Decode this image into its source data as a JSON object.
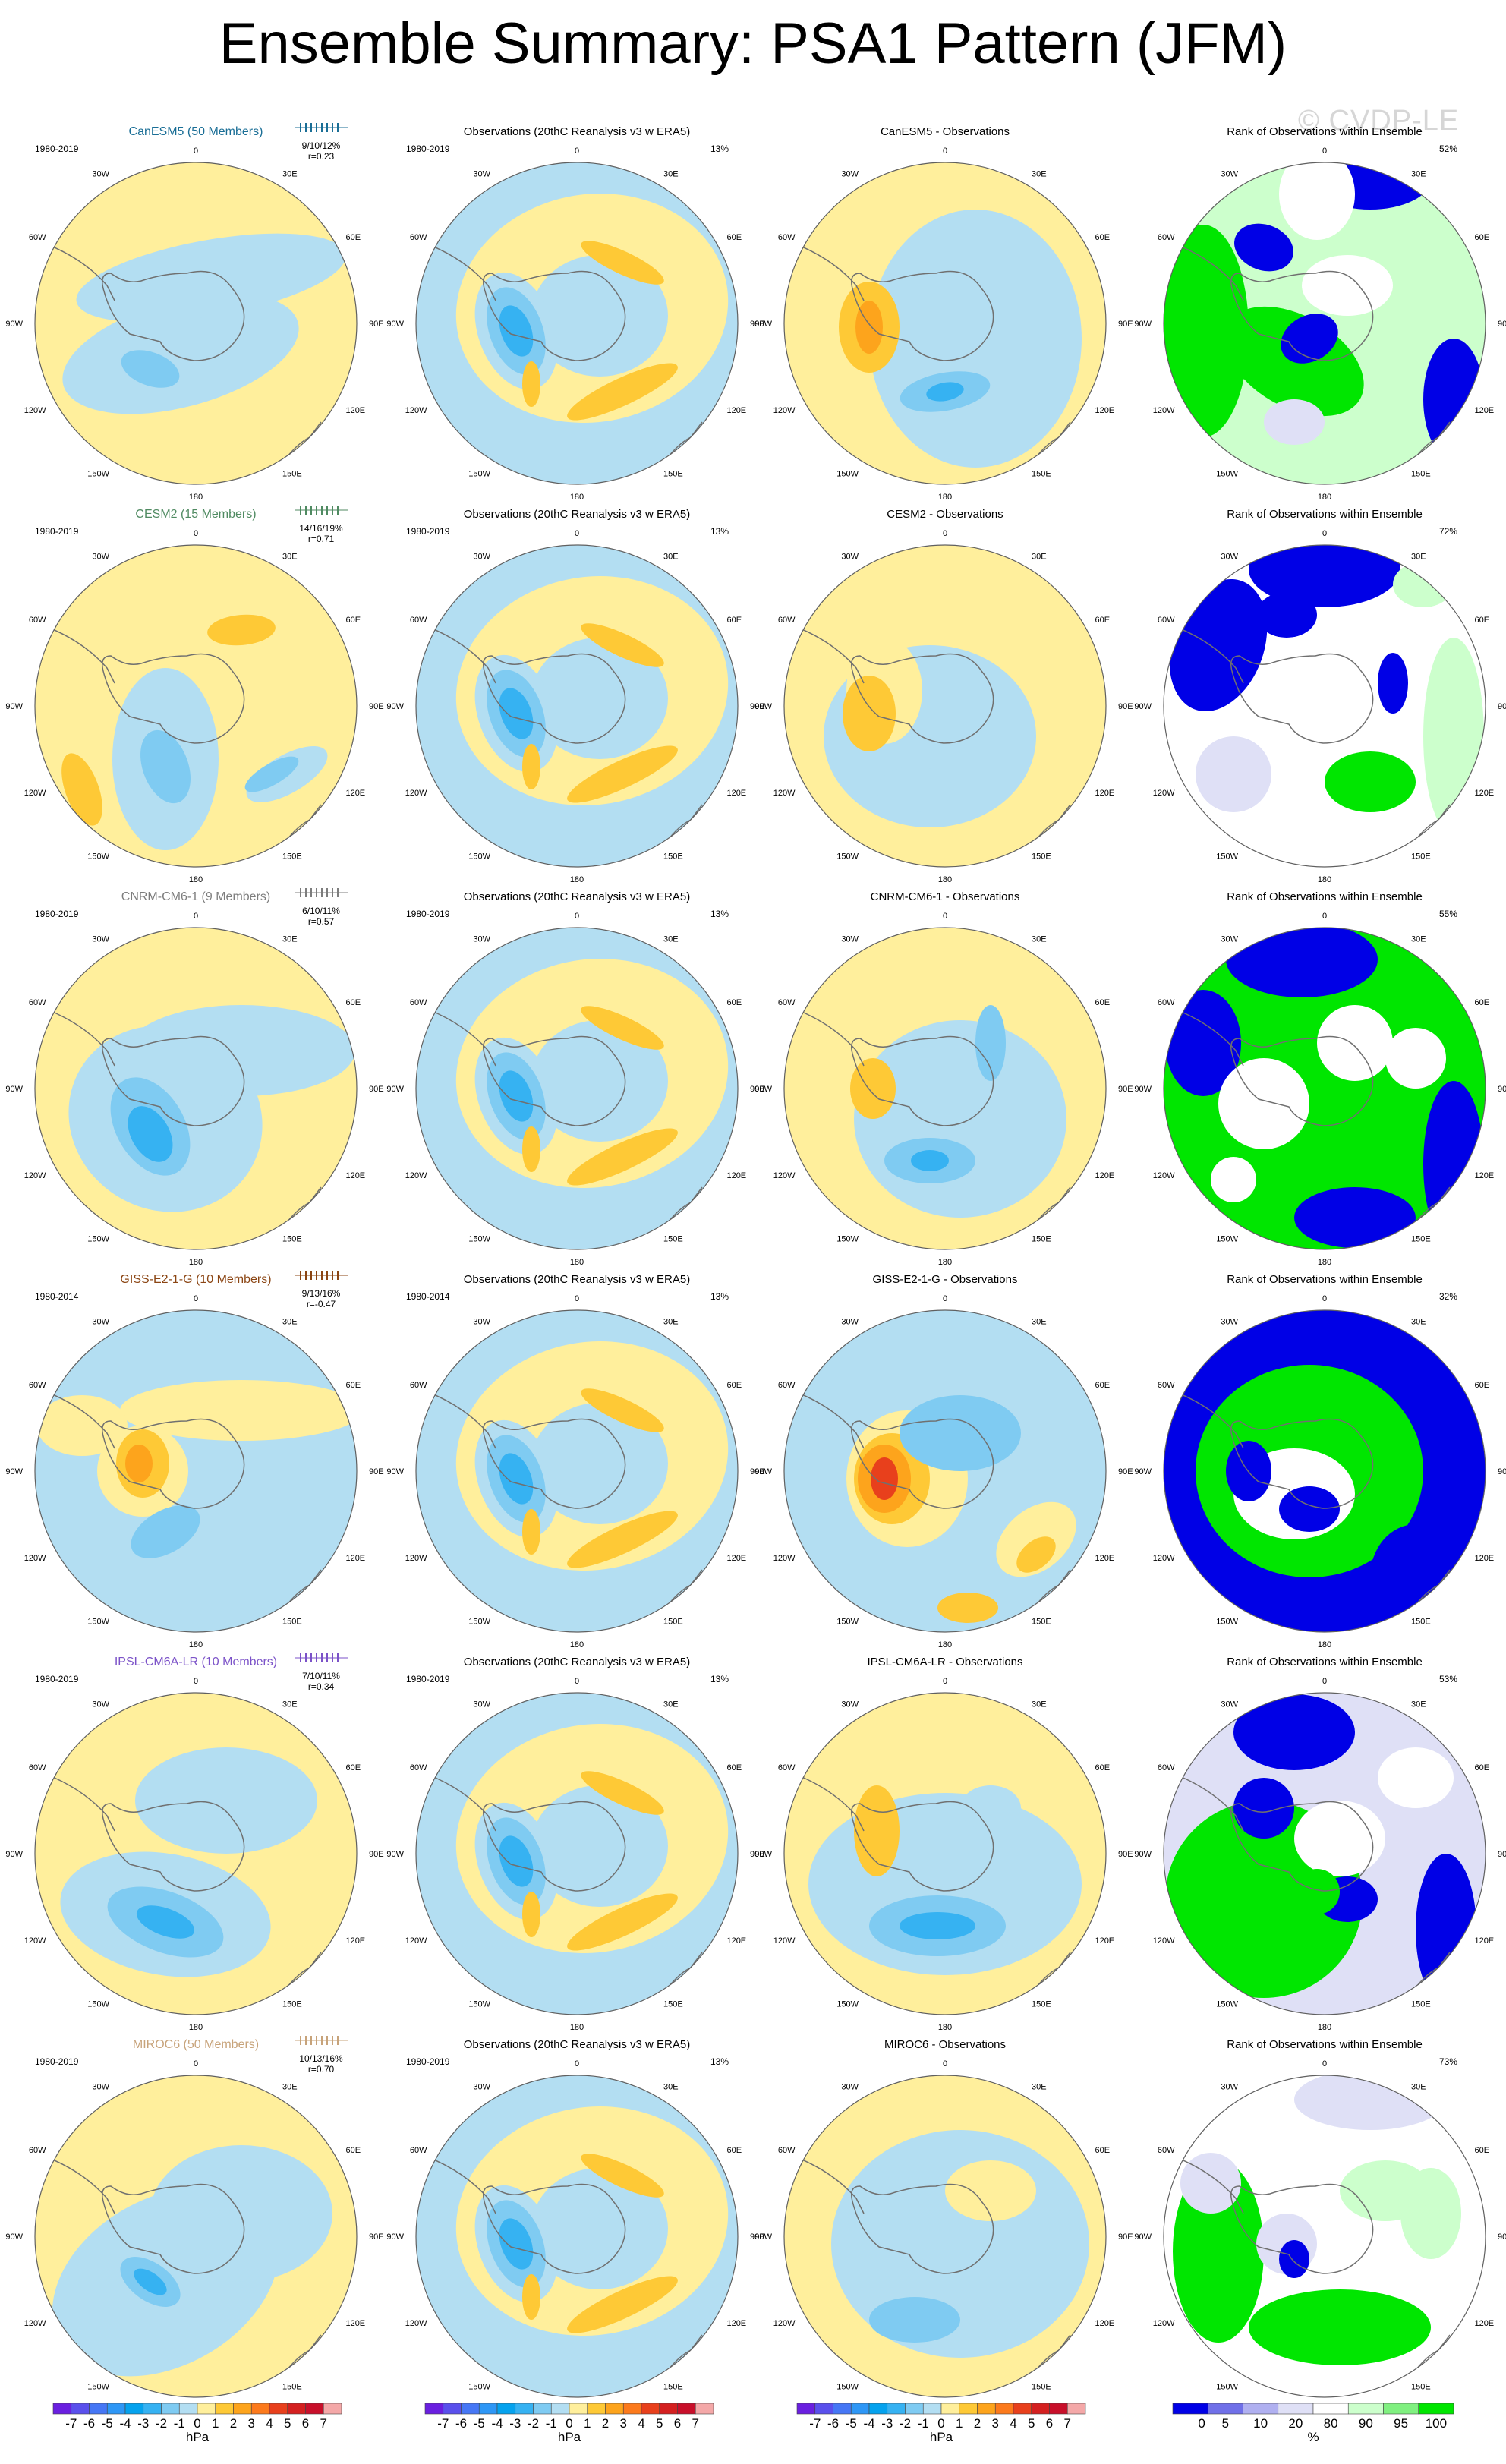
{
  "title": "Ensemble Summary: PSA1 Pattern (JFM)",
  "watermark": "© CVDP-LE",
  "colors": {
    "yellow": "#ffef9c",
    "lightblue": "#b3def2",
    "orange1": "#fec936",
    "orange2": "#fda41c",
    "red": "#e8401c",
    "blue1": "#7fcbf2",
    "blue2": "#36b2f2",
    "blue3": "#05a2ee",
    "rank_blue": "#0000e6",
    "rank_green": "#00e600",
    "rank_lightgreen": "#ccffcc",
    "rank_lightblue": "#dfe0f6"
  },
  "longitude_labels": [
    "0",
    "30E",
    "60E",
    "90E",
    "120E",
    "150E",
    "180",
    "150W",
    "120W",
    "90W",
    "60W",
    "30W"
  ],
  "rows": [
    {
      "model": "CanESM5 (50 Members)",
      "model_color": "#1a6e96",
      "period": "1980-2019",
      "stats": "9/10/12%",
      "corr": "r=0.23",
      "obs_title": "Observations (20thC Reanalysis v3 w ERA5)",
      "obs_pct": "13%",
      "diff_title": "CanESM5 - Observations",
      "rank_title": "Rank of Observations within Ensemble",
      "rank_pct": "52%"
    },
    {
      "model": "CESM2 (15 Members)",
      "model_color": "#4f8a61",
      "period": "1980-2019",
      "stats": "14/16/19%",
      "corr": "r=0.71",
      "obs_title": "Observations (20thC Reanalysis v3 w ERA5)",
      "obs_pct": "13%",
      "diff_title": "CESM2 - Observations",
      "rank_title": "Rank of Observations within Ensemble",
      "rank_pct": "72%"
    },
    {
      "model": "CNRM-CM6-1 (9 Members)",
      "model_color": "#7d7d7d",
      "period": "1980-2019",
      "stats": "6/10/11%",
      "corr": "r=0.57",
      "obs_title": "Observations (20thC Reanalysis v3 w ERA5)",
      "obs_pct": "13%",
      "diff_title": "CNRM-CM6-1 - Observations",
      "rank_title": "Rank of Observations within Ensemble",
      "rank_pct": "55%"
    },
    {
      "model": "GISS-E2-1-G (10 Members)",
      "model_color": "#8b4513",
      "period": "1980-2014",
      "stats": "9/13/16%",
      "corr": "r=-0.47",
      "obs_title": "Observations (20thC Reanalysis v3 w ERA5)",
      "obs_pct": "13%",
      "diff_title": "GISS-E2-1-G - Observations",
      "rank_title": "Rank of Observations within Ensemble",
      "rank_pct": "32%"
    },
    {
      "model": "IPSL-CM6A-LR (10 Members)",
      "model_color": "#7b52c8",
      "period": "1980-2019",
      "stats": "7/10/11%",
      "corr": "r=0.34",
      "obs_title": "Observations (20thC Reanalysis v3 w ERA5)",
      "obs_pct": "13%",
      "diff_title": "IPSL-CM6A-LR - Observations",
      "rank_title": "Rank of Observations within Ensemble",
      "rank_pct": "53%"
    },
    {
      "model": "MIROC6 (50 Members)",
      "model_color": "#c7a37a",
      "period": "1980-2019",
      "stats": "10/13/16%",
      "corr": "r=0.70",
      "obs_title": "Observations (20thC Reanalysis v3 w ERA5)",
      "obs_pct": "13%",
      "diff_title": "MIROC6 - Observations",
      "rank_title": "Rank of Observations within Ensemble",
      "rank_pct": "73%"
    }
  ],
  "chart_data": [
    {
      "type": "heatmap",
      "description_of_field": "sea level pressure colorbar",
      "unit_label": "hPa",
      "tick_labels": [
        "-7",
        "-6",
        "-5",
        "-4",
        "-3",
        "-2",
        "-1",
        "0",
        "1",
        "2",
        "3",
        "4",
        "5",
        "6",
        "7"
      ],
      "bins": [
        -7,
        -6,
        -5,
        -4,
        -3,
        -2,
        -1,
        0,
        1,
        2,
        3,
        4,
        5,
        6,
        7
      ],
      "colors": [
        "#6a1fe0",
        "#5a50ec",
        "#4677f5",
        "#2e97f6",
        "#05a2ee",
        "#36b2f2",
        "#7fcbf2",
        "#b3def2",
        "#ffef9c",
        "#fec936",
        "#fda41c",
        "#fc7a1c",
        "#e8401c",
        "#d42020",
        "#c80f2a",
        "#f4a8a8"
      ]
    },
    {
      "type": "heatmap",
      "description_of_field": "rank colorbar",
      "unit_label": "%",
      "tick_labels": [
        "0",
        "5",
        "10",
        "20",
        "80",
        "90",
        "95",
        "100"
      ],
      "bins": [
        0,
        5,
        10,
        20,
        80,
        90,
        95,
        100
      ],
      "colors": [
        "#0000e6",
        "#7070e8",
        "#b0b0f0",
        "#dfe0f6",
        "#ffffff",
        "#ccffcc",
        "#80f080",
        "#00e600"
      ]
    }
  ]
}
